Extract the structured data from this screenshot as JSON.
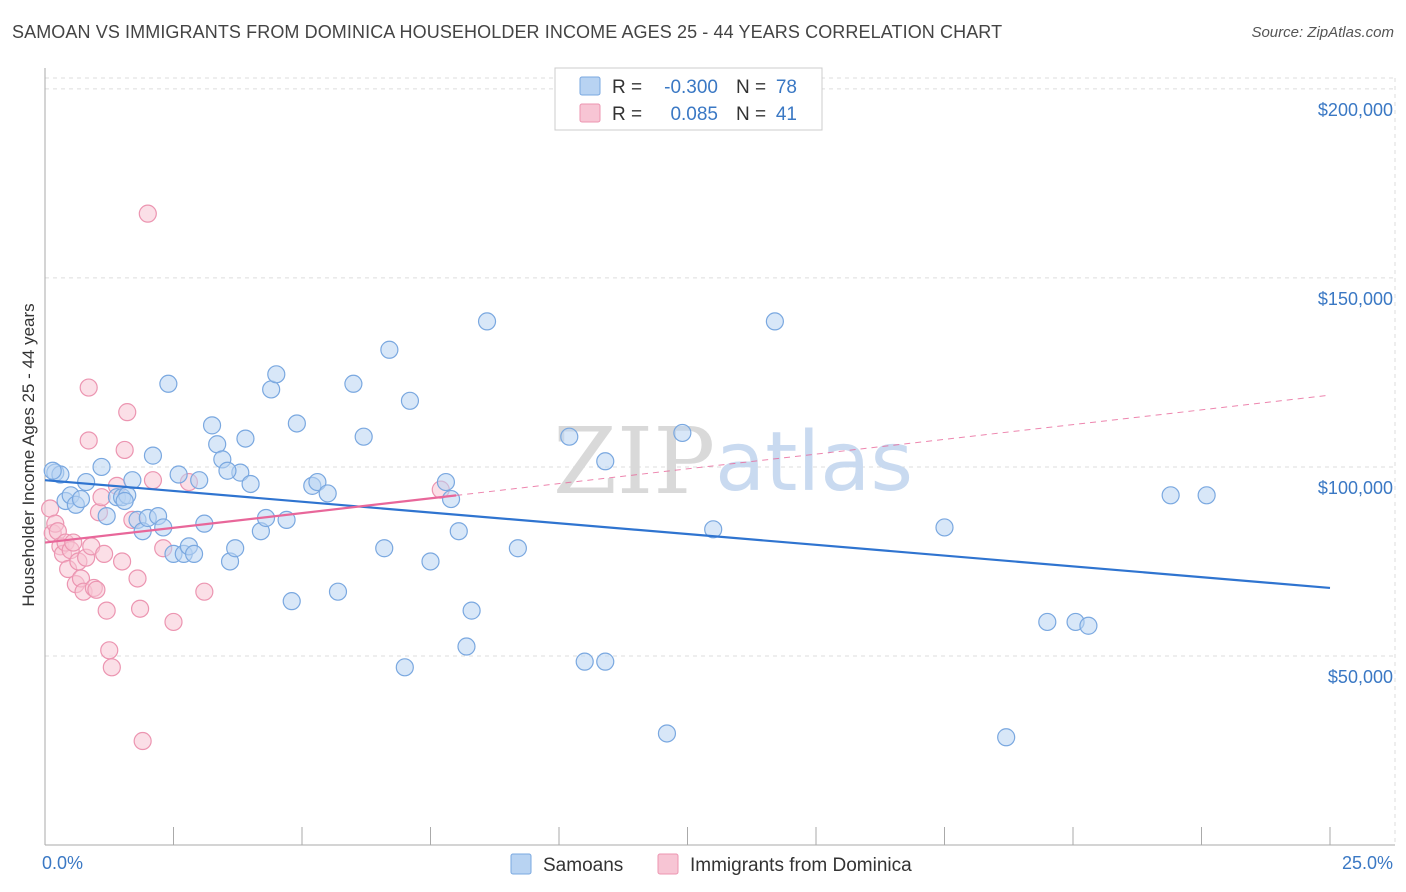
{
  "title": "SAMOAN VS IMMIGRANTS FROM DOMINICA HOUSEHOLDER INCOME AGES 25 - 44 YEARS CORRELATION CHART",
  "source": "Source: ZipAtlas.com",
  "watermark": {
    "zip": "ZIP",
    "atlas": "atlas"
  },
  "legend": {
    "r_label": "R =",
    "n_label": "N =",
    "rows": [
      {
        "r": "-0.300",
        "n": "78"
      },
      {
        "r": "0.085",
        "n": "41"
      }
    ]
  },
  "colors": {
    "samoans_fill": "#b8d3f2",
    "samoans_stroke": "#7aa8e0",
    "samoans_line": "#2f74d0",
    "dominica_fill": "#f7c5d4",
    "dominica_stroke": "#ec95b1",
    "dominica_line": "#e8679a",
    "tick_text": "#3a78c4",
    "grid": "#dddddd"
  },
  "chart_data": {
    "type": "scatter",
    "title": "SAMOAN VS IMMIGRANTS FROM DOMINICA HOUSEHOLDER INCOME AGES 25 - 44 YEARS CORRELATION CHART",
    "xlabel": "",
    "ylabel": "Householder Income Ages 25 - 44 years",
    "xlim": [
      0,
      25
    ],
    "ylim": [
      0,
      205000
    ],
    "x_tick_labels": [
      "0.0%",
      "25.0%"
    ],
    "y_ticks": [
      50000,
      100000,
      150000,
      200000
    ],
    "y_tick_labels": [
      "$50,000",
      "$100,000",
      "$150,000",
      "$200,000"
    ],
    "series": [
      {
        "name": "Samoans",
        "r": -0.3,
        "n": 78,
        "trend": {
          "x": [
            0,
            25
          ],
          "y": [
            96500,
            68000
          ]
        },
        "points": [
          [
            0.2,
            98500
          ],
          [
            0.3,
            98000
          ],
          [
            0.4,
            91000
          ],
          [
            0.5,
            92500
          ],
          [
            0.6,
            90000
          ],
          [
            0.7,
            91500
          ],
          [
            0.8,
            96000
          ],
          [
            1.1,
            100000
          ],
          [
            1.2,
            87000
          ],
          [
            1.4,
            92000
          ],
          [
            1.5,
            92000
          ],
          [
            1.6,
            92500
          ],
          [
            1.7,
            96500
          ],
          [
            1.8,
            86000
          ],
          [
            1.9,
            83000
          ],
          [
            2.0,
            86500
          ],
          [
            2.1,
            103000
          ],
          [
            2.2,
            87000
          ],
          [
            2.3,
            84000
          ],
          [
            2.4,
            122000
          ],
          [
            2.5,
            77000
          ],
          [
            2.6,
            98000
          ],
          [
            2.7,
            77000
          ],
          [
            2.8,
            79000
          ],
          [
            2.9,
            77000
          ],
          [
            3.0,
            96500
          ],
          [
            3.1,
            85000
          ],
          [
            3.25,
            111000
          ],
          [
            3.35,
            106000
          ],
          [
            3.45,
            102000
          ],
          [
            3.6,
            75000
          ],
          [
            3.7,
            78500
          ],
          [
            3.8,
            98500
          ],
          [
            3.9,
            107500
          ],
          [
            4.0,
            95500
          ],
          [
            4.2,
            83000
          ],
          [
            4.3,
            86500
          ],
          [
            4.4,
            120500
          ],
          [
            4.5,
            124500
          ],
          [
            4.7,
            86000
          ],
          [
            4.8,
            64500
          ],
          [
            4.9,
            111500
          ],
          [
            5.2,
            95000
          ],
          [
            5.3,
            96000
          ],
          [
            5.5,
            93000
          ],
          [
            5.7,
            67000
          ],
          [
            6.0,
            122000
          ],
          [
            6.2,
            108000
          ],
          [
            6.6,
            78500
          ],
          [
            6.7,
            131000
          ],
          [
            7.0,
            47000
          ],
          [
            7.1,
            117500
          ],
          [
            7.5,
            75000
          ],
          [
            7.8,
            96000
          ],
          [
            7.9,
            91500
          ],
          [
            8.05,
            83000
          ],
          [
            8.2,
            52500
          ],
          [
            8.3,
            62000
          ],
          [
            8.6,
            138500
          ],
          [
            9.2,
            78500
          ],
          [
            10.2,
            108000
          ],
          [
            10.5,
            48500
          ],
          [
            10.9,
            101500
          ],
          [
            10.9,
            48500
          ],
          [
            12.1,
            29500
          ],
          [
            12.4,
            109000
          ],
          [
            13.0,
            83500
          ],
          [
            14.2,
            138500
          ],
          [
            17.5,
            84000
          ],
          [
            18.7,
            28500
          ],
          [
            19.5,
            59000
          ],
          [
            20.05,
            59000
          ],
          [
            20.3,
            58000
          ],
          [
            21.9,
            92500
          ],
          [
            22.6,
            92500
          ],
          [
            0.15,
            99000
          ],
          [
            1.55,
            91000
          ],
          [
            3.55,
            99000
          ]
        ]
      },
      {
        "name": "Immigrants from Dominica",
        "r": 0.085,
        "n": 41,
        "trend": {
          "x": [
            0,
            25
          ],
          "y": [
            80000,
            119000
          ]
        },
        "trend_solid_until_x": 8.0,
        "points": [
          [
            0.1,
            89000
          ],
          [
            0.15,
            82500
          ],
          [
            0.2,
            85000
          ],
          [
            0.25,
            83000
          ],
          [
            0.3,
            79000
          ],
          [
            0.35,
            77000
          ],
          [
            0.4,
            80000
          ],
          [
            0.45,
            73000
          ],
          [
            0.5,
            78000
          ],
          [
            0.55,
            80000
          ],
          [
            0.6,
            69000
          ],
          [
            0.65,
            75000
          ],
          [
            0.7,
            70500
          ],
          [
            0.75,
            67000
          ],
          [
            0.8,
            76000
          ],
          [
            0.85,
            107000
          ],
          [
            0.9,
            79000
          ],
          [
            0.95,
            68000
          ],
          [
            1.0,
            67500
          ],
          [
            1.05,
            88000
          ],
          [
            1.1,
            92000
          ],
          [
            1.15,
            77000
          ],
          [
            1.2,
            62000
          ],
          [
            1.25,
            51500
          ],
          [
            1.3,
            47000
          ],
          [
            1.4,
            95000
          ],
          [
            1.5,
            75000
          ],
          [
            1.55,
            104500
          ],
          [
            1.6,
            114500
          ],
          [
            1.7,
            86000
          ],
          [
            1.8,
            70500
          ],
          [
            1.85,
            62500
          ],
          [
            1.9,
            27500
          ],
          [
            2.0,
            167000
          ],
          [
            2.1,
            96500
          ],
          [
            2.3,
            78500
          ],
          [
            2.5,
            59000
          ],
          [
            2.8,
            96000
          ],
          [
            3.1,
            67000
          ],
          [
            7.7,
            94000
          ],
          [
            0.85,
            121000
          ]
        ]
      }
    ],
    "legend_position": "top-center"
  }
}
